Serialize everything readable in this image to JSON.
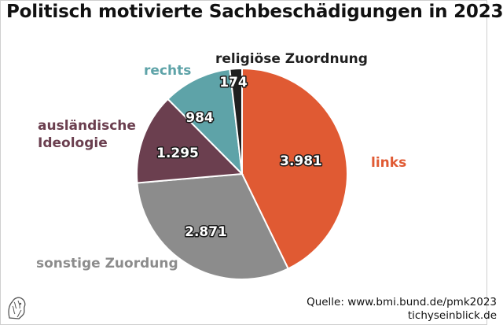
{
  "title": "Politisch motivierte Sachbeschädigungen in 2023",
  "source": {
    "line1": "Quelle: www.bmi.bund.de/pmk2023",
    "line2": "tichyseinblick.de"
  },
  "logo": {
    "icon": "lion-head-logo-icon"
  },
  "chart_data": {
    "type": "pie",
    "title": "Politisch motivierte Sachbeschädigungen in 2023",
    "start": "12 o'clock",
    "direction": "clockwise",
    "legend": "none (direct labels)",
    "slices": [
      {
        "label": "links",
        "value": 3981,
        "value_label": "3.981",
        "color": "#e05a33",
        "label_lines": [
          "links"
        ]
      },
      {
        "label": "sonstige Zuordung",
        "value": 2871,
        "value_label": "2.871",
        "color": "#8c8c8c",
        "label_lines": [
          "sonstige Zuordung"
        ]
      },
      {
        "label": "ausländische Ideologie",
        "value": 1295,
        "value_label": "1.295",
        "color": "#6b3f4f",
        "label_lines": [
          "ausländische",
          "Ideologie"
        ]
      },
      {
        "label": "rechts",
        "value": 984,
        "value_label": "984",
        "color": "#5ea3a8",
        "label_lines": [
          "rechts"
        ]
      },
      {
        "label": "religiöse Zuordnung",
        "value": 174,
        "value_label": "174",
        "color": "#1f1f1f",
        "label_lines": [
          "religiöse Zuordnung"
        ]
      }
    ]
  }
}
